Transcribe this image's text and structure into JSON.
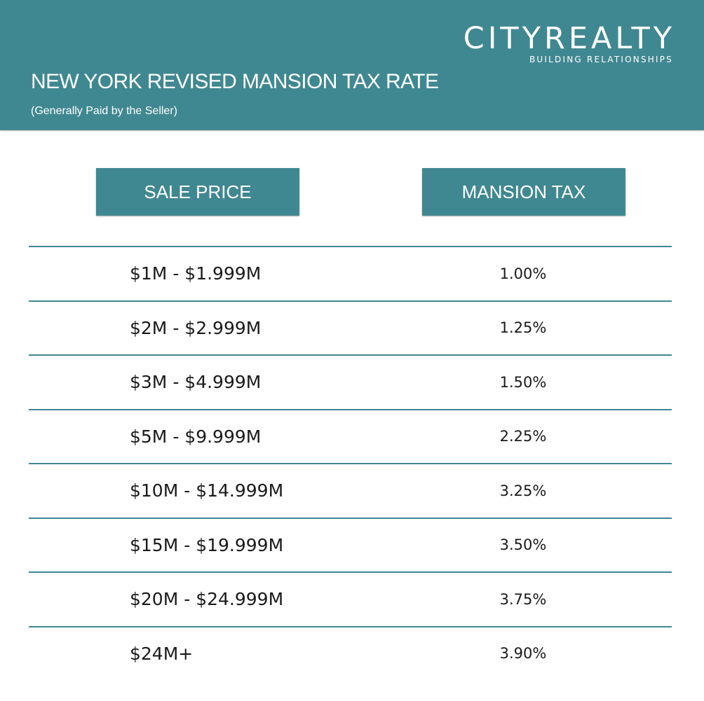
{
  "colors": {
    "accent": "#408891",
    "text": "#1a1a1a",
    "background": "#ffffff"
  },
  "brand": {
    "name": "CITYREALTY",
    "tagline": "BUILDING RELATIONSHIPS"
  },
  "header": {
    "title": "NEW YORK REVISED MANSION TAX RATE",
    "subtitle": "(Generally Paid by the Seller)"
  },
  "table": {
    "columns": [
      "SALE PRICE",
      "MANSION TAX"
    ],
    "rows": [
      {
        "price": "$1M - $1.999M",
        "tax": "1.00%"
      },
      {
        "price": "$2M - $2.999M",
        "tax": "1.25%"
      },
      {
        "price": "$3M - $4.999M",
        "tax": "1.50%"
      },
      {
        "price": "$5M - $9.999M",
        "tax": "2.25%"
      },
      {
        "price": "$10M - $14.999M",
        "tax": "3.25%"
      },
      {
        "price": "$15M - $19.999M",
        "tax": "3.50%"
      },
      {
        "price": "$20M - $24.999M",
        "tax": "3.75%"
      },
      {
        "price": "$24M+",
        "tax": "3.90%"
      }
    ]
  }
}
